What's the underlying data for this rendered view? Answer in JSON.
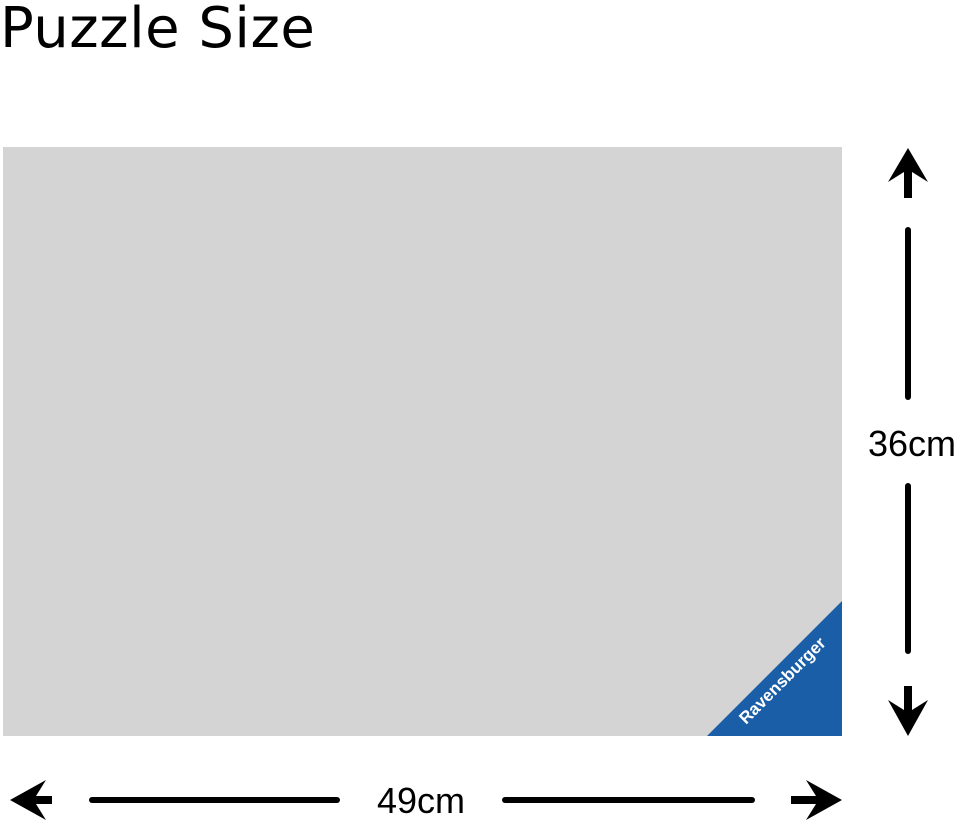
{
  "title": "Puzzle Size",
  "width_label": "49cm",
  "height_label": "36cm",
  "brand": "Ravensburger",
  "colors": {
    "puzzle": "#d4d4d4",
    "brand_blue": "#1a5ea8",
    "arrow": "#000000"
  }
}
